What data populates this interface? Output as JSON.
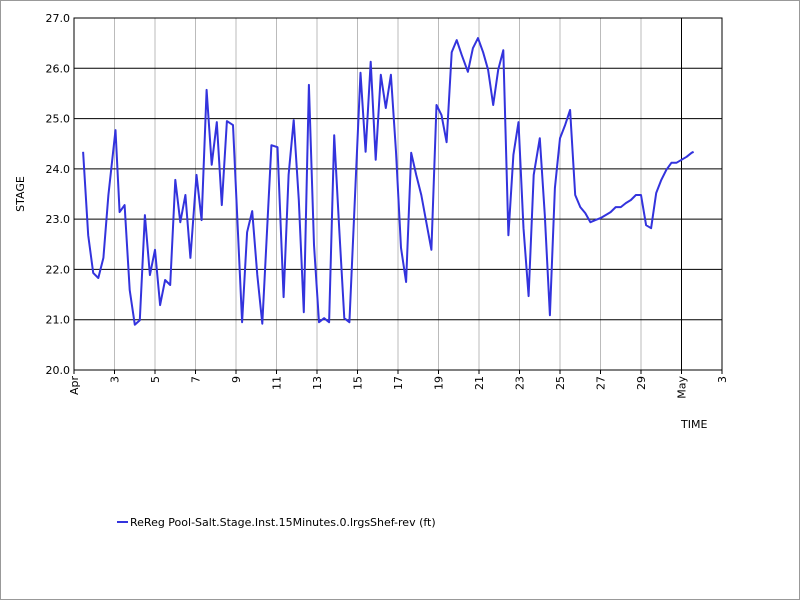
{
  "chart_data": {
    "type": "line",
    "xlabel": "TIME",
    "ylabel": "STAGE",
    "xlim": [
      1,
      33
    ],
    "ylim": [
      20,
      27
    ],
    "xticks": [
      {
        "value": 1,
        "label": "Apr"
      },
      3,
      5,
      7,
      9,
      11,
      13,
      15,
      17,
      19,
      21,
      23,
      25,
      27,
      29,
      {
        "value": 31,
        "label": "May"
      },
      {
        "value": 33,
        "label": "3"
      }
    ],
    "yticks": [
      {
        "value": 20,
        "label": "20.0"
      },
      {
        "value": 21,
        "label": "21.0"
      },
      {
        "value": 22,
        "label": "22.0"
      },
      {
        "value": 23,
        "label": "23.0"
      },
      {
        "value": 24,
        "label": "24.0"
      },
      {
        "value": 25,
        "label": "25.0"
      },
      {
        "value": 26,
        "label": "26.0"
      },
      {
        "value": 27,
        "label": "27.0"
      }
    ],
    "grid": true,
    "series": [
      {
        "name": "ReReg Pool-Salt.Stage.Inst.15Minutes.0.lrgsShef-rev (ft)",
        "color": "#3333dd",
        "x": [
          1.45,
          1.7,
          1.95,
          2.2,
          2.45,
          2.7,
          3.05,
          3.25,
          3.5,
          3.75,
          4.0,
          4.25,
          4.5,
          4.75,
          5.0,
          5.25,
          5.5,
          5.75,
          6.0,
          6.25,
          6.5,
          6.75,
          7.05,
          7.3,
          7.55,
          7.8,
          8.05,
          8.3,
          8.55,
          8.85,
          9.3,
          9.55,
          9.8,
          10.05,
          10.3,
          10.75,
          11.05,
          11.35,
          11.6,
          11.85,
          12.1,
          12.35,
          12.6,
          12.85,
          13.1,
          13.35,
          13.6,
          13.85,
          14.1,
          14.35,
          14.6,
          14.9,
          15.15,
          15.4,
          15.65,
          15.9,
          16.15,
          16.4,
          16.65,
          16.9,
          17.15,
          17.4,
          17.65,
          17.9,
          18.15,
          18.4,
          18.65,
          18.9,
          19.15,
          19.4,
          19.65,
          19.9,
          20.15,
          20.45,
          20.7,
          20.95,
          21.2,
          21.45,
          21.7,
          21.95,
          22.2,
          22.45,
          22.7,
          22.95,
          23.2,
          23.45,
          23.7,
          24.0,
          24.25,
          24.5,
          24.75,
          25.0,
          25.25,
          25.5,
          25.75,
          26.0,
          26.25,
          26.5,
          26.75,
          27.0,
          27.25,
          27.5,
          27.75,
          28.0,
          28.25,
          28.5,
          28.75,
          29.0,
          29.25,
          29.5,
          29.75,
          30.0,
          30.25,
          30.5,
          30.75,
          31.0,
          31.25,
          31.5,
          31.6
        ],
        "values": [
          24.34,
          22.68,
          21.93,
          21.83,
          22.23,
          23.48,
          24.77,
          23.14,
          23.28,
          21.59,
          20.9,
          20.99,
          23.08,
          21.89,
          22.39,
          21.29,
          21.79,
          21.69,
          23.78,
          22.94,
          23.48,
          22.23,
          23.88,
          22.98,
          25.57,
          24.08,
          24.93,
          23.28,
          24.95,
          24.87,
          20.95,
          22.74,
          23.16,
          21.89,
          20.92,
          24.47,
          24.43,
          21.45,
          23.88,
          24.97,
          23.38,
          21.15,
          25.67,
          22.49,
          20.95,
          21.03,
          20.95,
          24.67,
          22.78,
          21.03,
          20.95,
          23.68,
          25.91,
          24.34,
          26.13,
          24.18,
          25.87,
          25.21,
          25.87,
          24.34,
          22.43,
          21.75,
          24.32,
          23.88,
          23.48,
          22.94,
          22.39,
          25.27,
          25.07,
          24.53,
          26.32,
          26.56,
          26.26,
          25.93,
          26.4,
          26.6,
          26.32,
          25.97,
          25.27,
          25.97,
          26.36,
          22.68,
          24.28,
          24.93,
          22.82,
          21.47,
          23.88,
          24.61,
          23.08,
          21.09,
          23.62,
          24.61,
          24.87,
          25.17,
          23.48,
          23.24,
          23.12,
          22.94,
          22.98,
          23.02,
          23.08,
          23.14,
          23.24,
          23.24,
          23.32,
          23.38,
          23.48,
          23.48,
          22.88,
          22.82,
          23.52,
          23.78,
          23.98,
          24.12,
          24.12,
          24.18,
          24.24,
          24.32,
          24.34
        ]
      }
    ]
  }
}
